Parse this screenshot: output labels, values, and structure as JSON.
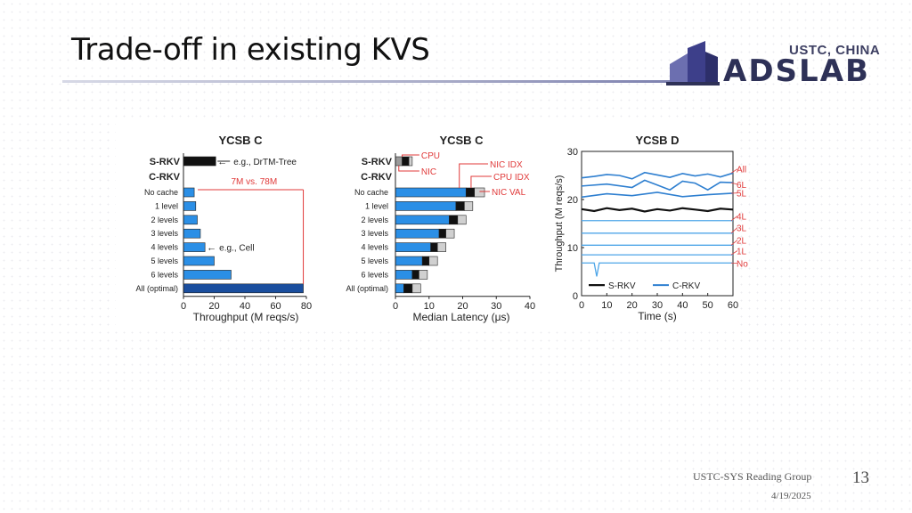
{
  "slide": {
    "title": "Trade-off in existing KVS",
    "logo_top": "USTC, CHINA",
    "logo_main": "ADSLAB",
    "footer_group": "USTC-SYS Reading Group",
    "footer_date": "4/19/2025",
    "page_number": "13"
  },
  "colors": {
    "bar_blue": "#2b8fe6",
    "bar_dark_blue": "#1a4e9e",
    "srkv_black": "#111111",
    "annotation_red": "#e03a3a",
    "line_blue": "#2e7fd0",
    "line_light_blue": "#4fa6e8"
  },
  "chart_data": [
    {
      "type": "bar",
      "title": "YCSB C",
      "xlabel": "Throughput (M reqs/s)",
      "xlim": [
        0,
        80
      ],
      "xticks": [
        "0",
        "20",
        "40",
        "60",
        "80"
      ],
      "group_labels": [
        "S-RKV",
        "C-RKV"
      ],
      "categories": [
        "S-RKV",
        "No cache",
        "1 level",
        "2 levels",
        "3 levels",
        "4 levels",
        "5 levels",
        "6 levels",
        "All (optimal)"
      ],
      "values": [
        21,
        7,
        8,
        9,
        11,
        14,
        20,
        31,
        78
      ],
      "annotations": {
        "drtm": "e.g., DrTM-Tree",
        "cell": "e.g., Cell",
        "compare": "7M vs. 78M"
      }
    },
    {
      "type": "bar",
      "title": "YCSB C",
      "xlabel": "Median Latency (μs)",
      "xlim": [
        0,
        40
      ],
      "xticks": [
        "0",
        "10",
        "20",
        "30",
        "40"
      ],
      "group_labels": [
        "S-RKV",
        "C-RKV"
      ],
      "categories": [
        "S-RKV",
        "No cache",
        "1 level",
        "2 levels",
        "3 levels",
        "4 levels",
        "5 levels",
        "6 levels",
        "All (optimal)"
      ],
      "segments": [
        "NIC / blue",
        "CPU IDX / black",
        "NIC VAL / gray"
      ],
      "stacks": [
        [
          2.0,
          2.0,
          1.0
        ],
        [
          21.0,
          2.5,
          3.0
        ],
        [
          18.0,
          2.5,
          2.5
        ],
        [
          16.0,
          2.5,
          2.5
        ],
        [
          13.0,
          2.0,
          2.5
        ],
        [
          10.5,
          2.0,
          2.5
        ],
        [
          8.0,
          2.0,
          2.5
        ],
        [
          5.0,
          2.0,
          2.5
        ],
        [
          2.5,
          2.5,
          2.5
        ]
      ],
      "annotations": {
        "cpu": "CPU",
        "nic": "NIC",
        "nic_idx": "NIC IDX",
        "cpu_idx": "CPU IDX",
        "nic_val": "NIC VAL"
      }
    },
    {
      "type": "line",
      "title": "YCSB D",
      "xlabel": "Time (s)",
      "ylabel": "Throughput (M reqs/s)",
      "xlim": [
        0,
        60
      ],
      "ylim": [
        0,
        30
      ],
      "xticks": [
        "0",
        "10",
        "20",
        "30",
        "40",
        "50",
        "60"
      ],
      "yticks": [
        "0",
        "10",
        "20",
        "30"
      ],
      "legend": [
        "S-RKV",
        "C-RKV"
      ],
      "series_labels": [
        "All",
        "6L",
        "5L",
        "4L",
        "3L",
        "2L",
        "1L",
        "No"
      ],
      "series": [
        {
          "label": "All",
          "x": [
            0,
            5,
            10,
            15,
            20,
            25,
            30,
            35,
            40,
            45,
            50,
            55,
            60
          ],
          "y": [
            24.5,
            24.8,
            25.2,
            25.0,
            24.3,
            25.6,
            25.1,
            24.6,
            25.4,
            24.9,
            25.3,
            24.7,
            25.5
          ]
        },
        {
          "label": "6L",
          "x": [
            0,
            10,
            20,
            25,
            30,
            35,
            40,
            45,
            50,
            55,
            60
          ],
          "y": [
            22.8,
            23.2,
            22.5,
            24.0,
            23.0,
            22.0,
            23.8,
            23.4,
            22.0,
            23.6,
            23.5
          ]
        },
        {
          "label": "5L",
          "x": [
            0,
            10,
            20,
            30,
            40,
            50,
            60
          ],
          "y": [
            20.5,
            21.2,
            20.8,
            21.5,
            20.6,
            21.0,
            21.3
          ]
        },
        {
          "label": "4L",
          "x": [
            0,
            60
          ],
          "y": [
            15.6,
            15.6
          ]
        },
        {
          "label": "3L",
          "x": [
            0,
            60
          ],
          "y": [
            13.0,
            13.0
          ]
        },
        {
          "label": "2L",
          "x": [
            0,
            60
          ],
          "y": [
            10.5,
            10.5
          ]
        },
        {
          "label": "1L",
          "x": [
            0,
            60
          ],
          "y": [
            8.5,
            8.5
          ]
        },
        {
          "label": "No",
          "x": [
            0,
            5,
            6,
            7,
            10,
            20,
            30,
            40,
            50,
            60
          ],
          "y": [
            6.8,
            6.8,
            4.0,
            6.8,
            6.8,
            6.8,
            6.8,
            6.8,
            6.8,
            6.8
          ]
        },
        {
          "label": "S-RKV",
          "x": [
            0,
            5,
            10,
            15,
            20,
            25,
            30,
            35,
            40,
            45,
            50,
            55,
            60
          ],
          "y": [
            18.0,
            17.6,
            18.2,
            17.8,
            18.1,
            17.5,
            18.0,
            17.7,
            18.2,
            17.9,
            17.6,
            18.1,
            17.9
          ]
        }
      ]
    }
  ]
}
